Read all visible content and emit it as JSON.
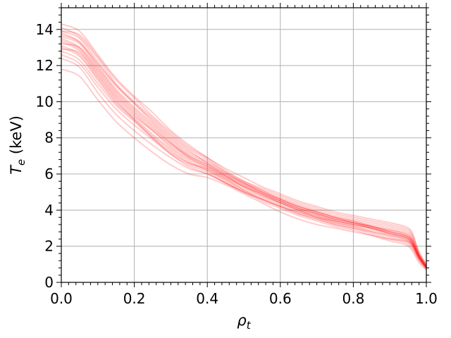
{
  "chart_data": {
    "type": "line",
    "title": "",
    "xlabel": {
      "symbol": "ρ",
      "sub": "t",
      "suffix": ""
    },
    "ylabel": {
      "symbol": "T",
      "sub": "e",
      "suffix": " (keV)"
    },
    "xlim": [
      0.0,
      1.0
    ],
    "ylim": [
      0,
      15.2
    ],
    "xticks": [
      0.0,
      0.2,
      0.4,
      0.6,
      0.8,
      1.0
    ],
    "xtick_labels": [
      "0.0",
      "0.2",
      "0.4",
      "0.6",
      "0.8",
      "1.0"
    ],
    "yticks": [
      0,
      2,
      4,
      6,
      8,
      10,
      12,
      14
    ],
    "ytick_labels": [
      "0",
      "2",
      "4",
      "6",
      "8",
      "10",
      "12",
      "14"
    ],
    "grid": true,
    "legend": "none",
    "line_color": "#ff0000",
    "line_opacity": 0.2,
    "x": [
      0.0,
      0.05,
      0.1,
      0.15,
      0.2,
      0.25,
      0.3,
      0.35,
      0.4,
      0.45,
      0.5,
      0.55,
      0.6,
      0.65,
      0.7,
      0.75,
      0.8,
      0.85,
      0.9,
      0.94,
      0.96,
      0.98,
      1.0
    ],
    "series": [
      {
        "values": [
          14.3,
          13.9,
          12.6,
          11.3,
          10.3,
          9.4,
          8.4,
          7.6,
          6.9,
          6.2,
          5.6,
          5.1,
          4.6,
          4.2,
          3.9,
          3.6,
          3.4,
          3.1,
          2.9,
          2.7,
          2.4,
          1.5,
          0.9
        ]
      },
      {
        "values": [
          14.1,
          13.6,
          12.4,
          11.0,
          10.0,
          9.1,
          8.2,
          7.4,
          6.8,
          6.1,
          5.5,
          5.0,
          4.5,
          4.1,
          3.8,
          3.5,
          3.3,
          3.1,
          2.8,
          2.6,
          2.3,
          1.4,
          0.8
        ]
      },
      {
        "values": [
          13.9,
          13.5,
          12.2,
          10.9,
          9.9,
          8.9,
          8.0,
          7.2,
          6.7,
          6.1,
          5.6,
          5.2,
          4.8,
          4.4,
          4.1,
          3.8,
          3.6,
          3.4,
          3.2,
          3.0,
          2.7,
          1.6,
          1.0
        ]
      },
      {
        "values": [
          13.8,
          13.3,
          12.0,
          10.7,
          9.7,
          8.8,
          7.9,
          7.1,
          6.6,
          6.0,
          5.5,
          5.1,
          4.7,
          4.3,
          4.0,
          3.7,
          3.5,
          3.3,
          3.1,
          2.9,
          2.6,
          1.6,
          0.9
        ]
      },
      {
        "values": [
          13.6,
          13.2,
          11.9,
          10.6,
          9.6,
          8.7,
          7.8,
          7.0,
          6.5,
          5.9,
          5.3,
          4.9,
          4.4,
          4.0,
          3.7,
          3.4,
          3.2,
          3.0,
          2.7,
          2.5,
          2.2,
          1.4,
          0.8
        ]
      },
      {
        "values": [
          13.5,
          13.0,
          11.7,
          10.4,
          9.4,
          8.5,
          7.7,
          6.9,
          6.4,
          5.8,
          5.3,
          4.8,
          4.4,
          4.0,
          3.6,
          3.3,
          3.1,
          2.8,
          2.5,
          2.3,
          2.0,
          1.3,
          0.8
        ]
      },
      {
        "values": [
          13.4,
          12.9,
          11.6,
          10.3,
          9.3,
          8.4,
          7.6,
          6.9,
          6.4,
          5.9,
          5.4,
          5.0,
          4.6,
          4.2,
          3.9,
          3.6,
          3.3,
          3.1,
          2.8,
          2.6,
          2.3,
          1.5,
          0.9
        ]
      },
      {
        "values": [
          13.3,
          12.8,
          11.5,
          10.2,
          9.2,
          8.4,
          7.5,
          6.8,
          6.3,
          5.7,
          5.1,
          4.6,
          4.2,
          3.8,
          3.5,
          3.2,
          3.0,
          2.7,
          2.4,
          2.2,
          1.9,
          1.2,
          0.7
        ]
      },
      {
        "values": [
          13.1,
          12.6,
          11.3,
          10.0,
          9.1,
          8.2,
          7.4,
          6.7,
          6.2,
          5.7,
          5.2,
          4.8,
          4.4,
          4.0,
          3.7,
          3.4,
          3.2,
          3.0,
          2.7,
          2.5,
          2.2,
          1.4,
          0.8
        ]
      },
      {
        "values": [
          13.0,
          12.5,
          11.2,
          9.9,
          9.0,
          8.1,
          7.3,
          6.6,
          6.2,
          5.6,
          5.1,
          4.7,
          4.3,
          3.9,
          3.6,
          3.3,
          3.1,
          2.9,
          2.6,
          2.4,
          2.1,
          1.3,
          0.8
        ]
      },
      {
        "values": [
          12.8,
          12.3,
          11.0,
          9.8,
          8.9,
          8.0,
          7.2,
          6.6,
          6.3,
          5.8,
          5.3,
          4.9,
          4.5,
          4.1,
          3.8,
          3.5,
          3.3,
          3.1,
          2.9,
          2.7,
          2.4,
          1.5,
          0.9
        ]
      },
      {
        "values": [
          12.6,
          12.1,
          10.8,
          9.6,
          8.7,
          7.9,
          7.1,
          6.5,
          6.1,
          5.5,
          5.0,
          4.5,
          4.1,
          3.7,
          3.4,
          3.1,
          2.9,
          2.6,
          2.3,
          2.1,
          1.8,
          1.1,
          0.7
        ]
      },
      {
        "values": [
          12.4,
          11.9,
          10.5,
          9.3,
          8.4,
          7.6,
          6.9,
          6.3,
          6.0,
          5.5,
          5.0,
          4.6,
          4.2,
          3.9,
          3.6,
          3.4,
          3.2,
          3.0,
          2.8,
          2.6,
          2.3,
          1.4,
          0.9
        ]
      },
      {
        "values": [
          11.8,
          11.4,
          10.1,
          8.9,
          8.0,
          7.2,
          6.5,
          6.0,
          5.8,
          5.4,
          4.9,
          4.4,
          3.9,
          3.5,
          3.2,
          3.0,
          2.8,
          2.6,
          2.4,
          2.3,
          2.1,
          1.4,
          0.8
        ]
      },
      {
        "values": [
          13.7,
          13.3,
          12.1,
          10.9,
          9.9,
          9.0,
          8.1,
          7.3,
          6.6,
          6.0,
          5.5,
          5.0,
          4.6,
          4.2,
          3.9,
          3.6,
          3.4,
          3.2,
          3.0,
          2.8,
          2.5,
          1.5,
          0.9
        ]
      },
      {
        "values": [
          13.9,
          13.7,
          12.5,
          11.2,
          10.2,
          9.2,
          8.3,
          7.5,
          6.9,
          6.3,
          5.8,
          5.3,
          4.9,
          4.5,
          4.2,
          3.9,
          3.7,
          3.5,
          3.3,
          3.1,
          2.8,
          1.7,
          1.0
        ]
      },
      {
        "values": [
          12.9,
          12.7,
          11.4,
          10.1,
          9.0,
          8.0,
          7.1,
          6.4,
          6.0,
          5.5,
          5.0,
          4.6,
          4.2,
          3.8,
          3.5,
          3.2,
          3.0,
          2.8,
          2.6,
          2.4,
          2.1,
          1.3,
          0.8
        ]
      },
      {
        "values": [
          13.2,
          13.0,
          11.8,
          10.5,
          9.5,
          8.6,
          7.7,
          7.0,
          6.5,
          5.9,
          5.4,
          4.9,
          4.5,
          4.1,
          3.8,
          3.5,
          3.3,
          3.0,
          2.7,
          2.5,
          2.2,
          1.4,
          0.8
        ]
      }
    ]
  }
}
